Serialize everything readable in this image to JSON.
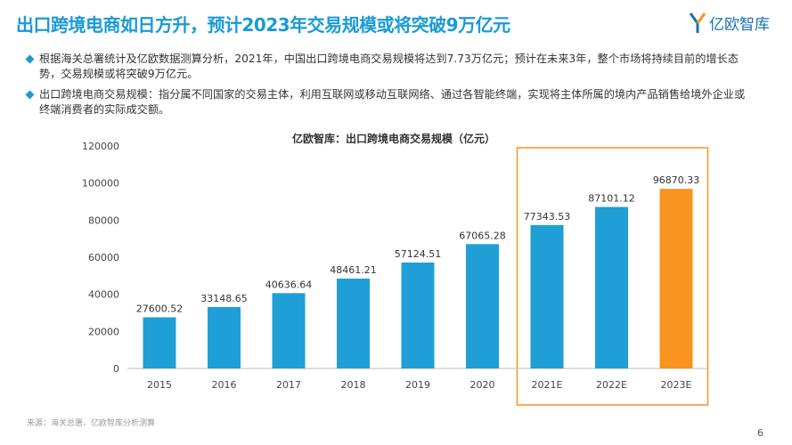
{
  "header": {
    "title": "出口跨境电商如日方升，预计2023年交易规模或将突破9万亿元",
    "logo_text": "亿欧智库"
  },
  "bullets": [
    "根据海关总署统计及亿欧数据测算分析，2021年，中国出口跨境电商交易规模将达到7.73万亿元；预计在未来3年，整个市场将持续目前的增长态势，交易规模或将突破9万亿元。",
    "出口跨境电商交易规模：指分属不同国家的交易主体，利用互联网或移动互联网络、通过各智能终端，实现将主体所属的境内产品销售给境外企业或终端消费者的实际成交额。"
  ],
  "source": "来源：海关总署、亿欧智库分析测算",
  "page_number": "6",
  "colors": {
    "accent": "#1a9ad6",
    "bar": "#1f9fd6",
    "highlight": "#f7931e"
  },
  "chart_data": {
    "type": "bar",
    "title": "亿欧智库：出口跨境电商交易规模（亿元）",
    "categories": [
      "2015",
      "2016",
      "2017",
      "2018",
      "2019",
      "2020",
      "2021E",
      "2022E",
      "2023E"
    ],
    "values": [
      27600.52,
      33148.65,
      40636.64,
      48461.21,
      57124.51,
      67065.28,
      77343.53,
      87101.12,
      96870.33
    ],
    "data_labels": [
      "27600.52",
      "33148.65",
      "40636.64",
      "48461.21",
      "57124.51",
      "67065.28",
      "77343.53",
      "87101.12",
      "96870.33"
    ],
    "highlighted_bar": "2023E",
    "highlight_box_categories": [
      "2021E",
      "2022E",
      "2023E"
    ],
    "ylim": [
      0,
      120000
    ],
    "yticks": [
      "0",
      "20000",
      "40000",
      "60000",
      "80000",
      "100000",
      "120000"
    ],
    "grid": false,
    "xlabel": "",
    "ylabel": ""
  }
}
